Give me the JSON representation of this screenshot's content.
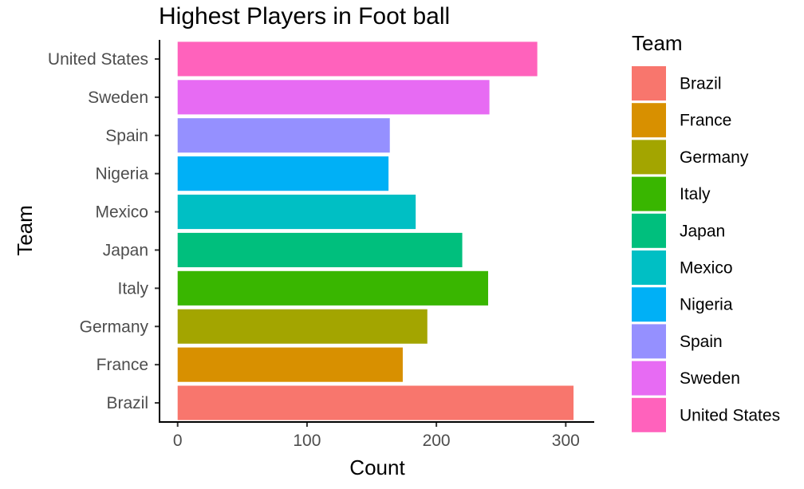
{
  "chart_data": {
    "type": "bar",
    "orientation": "horizontal",
    "title": "Highest Players in Foot ball",
    "xlabel": "Count",
    "ylabel": "Team",
    "xlim": [
      -14,
      322
    ],
    "x_ticks": [
      0,
      100,
      200,
      300
    ],
    "categories": [
      "Brazil",
      "France",
      "Germany",
      "Italy",
      "Japan",
      "Mexico",
      "Nigeria",
      "Spain",
      "Sweden",
      "United States"
    ],
    "values": [
      306,
      174,
      193,
      240,
      220,
      184,
      163,
      164,
      241,
      278
    ],
    "colors": [
      "#F8766D",
      "#D89000",
      "#A3A500",
      "#39B600",
      "#00BF7D",
      "#00BFC4",
      "#00B0F6",
      "#9590FF",
      "#E76BF3",
      "#FF62BC"
    ],
    "grid": false,
    "legend": {
      "title": "Team",
      "placement": "right",
      "items": [
        "Brazil",
        "France",
        "Germany",
        "Italy",
        "Japan",
        "Mexico",
        "Nigeria",
        "Spain",
        "Sweden",
        "United States"
      ]
    }
  }
}
